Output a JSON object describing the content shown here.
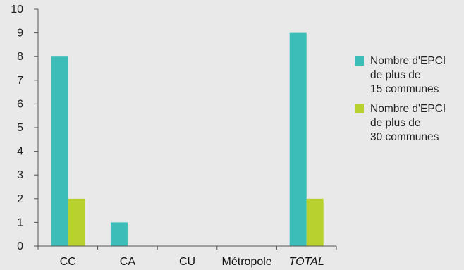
{
  "chart_data": {
    "type": "bar",
    "categories": [
      "CC",
      "CA",
      "CU",
      "Métropole",
      "TOTAL"
    ],
    "series": [
      {
        "name": "Nombre d'EPCI\nde plus de\n15 communes",
        "color": "#3dbdb8",
        "values": [
          8,
          1,
          0,
          0,
          9
        ]
      },
      {
        "name": "Nombre d'EPCI\nde plus de\n30 communes",
        "color": "#b8d12e",
        "values": [
          2,
          0,
          0,
          0,
          2
        ]
      }
    ],
    "ylim": [
      0,
      10
    ],
    "yticks": [
      "0",
      "1",
      "2",
      "3",
      "4",
      "5",
      "6",
      "7",
      "8",
      "9",
      "10"
    ],
    "grid": false,
    "legend_position": "right",
    "title": "",
    "xlabel": "",
    "ylabel": ""
  }
}
